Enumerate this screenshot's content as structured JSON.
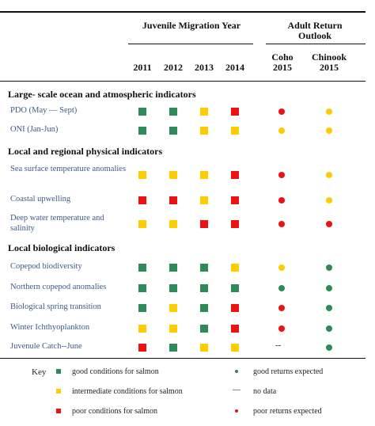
{
  "colors": {
    "good": "#2e8b57",
    "intermediate": "#ffcc00",
    "poor": "#ee1111",
    "label": "#3b5b8a"
  },
  "header": {
    "juvenile": "Juvenile Migration Year",
    "adult": "Adult Return Outlook",
    "years": [
      "2011",
      "2012",
      "2013",
      "2014"
    ],
    "coho": "Coho 2015",
    "chinook": "Chinook 2015"
  },
  "sections": [
    {
      "title": "Large- scale ocean and atmospheric indicators",
      "rows": [
        {
          "label": "PDO (May — Sept)",
          "years": [
            "good",
            "good",
            "intermediate",
            "poor"
          ],
          "coho": "poor",
          "chinook": "intermediate"
        },
        {
          "label": "ONI (Jan-Jun)",
          "years": [
            "good",
            "good",
            "intermediate",
            "intermediate"
          ],
          "coho": "intermediate",
          "chinook": "intermediate"
        }
      ]
    },
    {
      "title": "Local and regional physical indicators",
      "rows": [
        {
          "label": "Sea surface temperature anomalies",
          "years": [
            "intermediate",
            "intermediate",
            "intermediate",
            "poor"
          ],
          "coho": "poor",
          "chinook": "intermediate"
        },
        {
          "label": "Coastal upwelling",
          "years": [
            "poor",
            "poor",
            "intermediate",
            "poor"
          ],
          "coho": "poor",
          "chinook": "intermediate"
        },
        {
          "label": "Deep water temperature and salinity",
          "years": [
            "intermediate",
            "intermediate",
            "poor",
            "poor"
          ],
          "coho": "poor",
          "chinook": "poor"
        }
      ]
    },
    {
      "title": "Local biological indicators",
      "rows": [
        {
          "label": "Copepod biodiversity",
          "years": [
            "good",
            "good",
            "good",
            "intermediate"
          ],
          "coho": "intermediate",
          "chinook": "good"
        },
        {
          "label": "Northern copepod anomalies",
          "years": [
            "good",
            "good",
            "good",
            "good"
          ],
          "coho": "good",
          "chinook": "good"
        },
        {
          "label": "Biological spring transition",
          "years": [
            "good",
            "intermediate",
            "good",
            "poor"
          ],
          "coho": "poor",
          "chinook": "good"
        },
        {
          "label": "Winter Ichthyoplankton",
          "years": [
            "intermediate",
            "intermediate",
            "good",
            "poor"
          ],
          "coho": "poor",
          "chinook": "good"
        },
        {
          "label": "Juvenule Catch--June",
          "years": [
            "poor",
            "good",
            "intermediate",
            "intermediate"
          ],
          "coho": "nodata",
          "chinook": "good"
        }
      ]
    }
  ],
  "key": {
    "title": "Key",
    "good_conditions": "good conditions for salmon",
    "intermediate_conditions": "intermediate conditions for salmon",
    "poor_conditions": "poor conditions for salmon",
    "good_returns": "good returns expected",
    "no_data": "no data",
    "poor_returns": "poor returns expected",
    "nodata_symbol": "--",
    "nodata_key_symbol": "—"
  }
}
